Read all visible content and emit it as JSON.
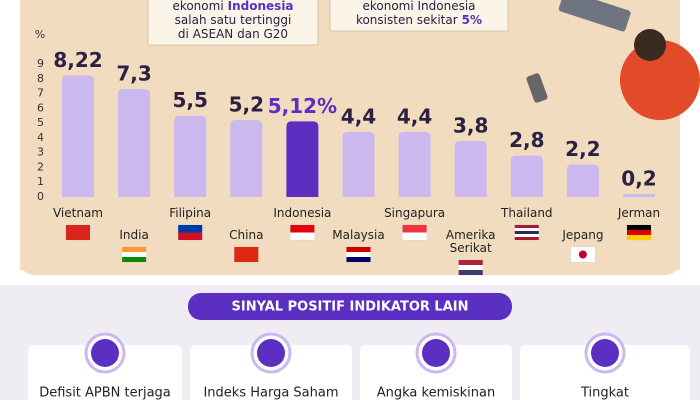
{
  "chart_data": {
    "type": "bar",
    "y_label": "%",
    "categories": [
      "Vietnam",
      "India",
      "Filipina",
      "China",
      "Indonesia",
      "Malaysia",
      "Singapura",
      "Amerika Serikat",
      "Thailand",
      "Jepang",
      "Jerman"
    ],
    "values": [
      8.22,
      7.3,
      5.5,
      5.2,
      5.12,
      4.4,
      4.4,
      3.8,
      2.8,
      2.2,
      0.2
    ],
    "value_labels": [
      "8,22",
      "7,3",
      "5,5",
      "5,2",
      "5,12%",
      "4,4",
      "4,4",
      "3,8",
      "2,8",
      "2,2",
      "0,2"
    ],
    "colors": [
      "#cbb8ef",
      "#cbb8ef",
      "#cbb8ef",
      "#cbb8ef",
      "#5a2fc2",
      "#cbb8ef",
      "#cbb8ef",
      "#cbb8ef",
      "#cbb8ef",
      "#cbb8ef",
      "#cbb8ef"
    ],
    "ylim": [
      0,
      9
    ],
    "yticks": [
      0,
      1,
      2,
      3,
      4,
      5,
      6,
      7,
      8,
      9
    ]
  },
  "callouts": [
    {
      "lines": [
        [
          "ekonomi",
          "Indonesia"
        ],
        [
          "salah satu tertinggi"
        ],
        [
          "di ASEAN dan G20"
        ]
      ]
    },
    {
      "lines": [
        [
          "ekonomi Indonesia"
        ],
        [
          "konsisten sekitar",
          "5%"
        ]
      ]
    }
  ],
  "section_title": "SINYAL POSITIF INDIKATOR LAIN",
  "indicators": [
    "Defisit APBN terjaga",
    "Indeks Harga Saham",
    "Angka kemiskinan",
    "Tingkat"
  ]
}
